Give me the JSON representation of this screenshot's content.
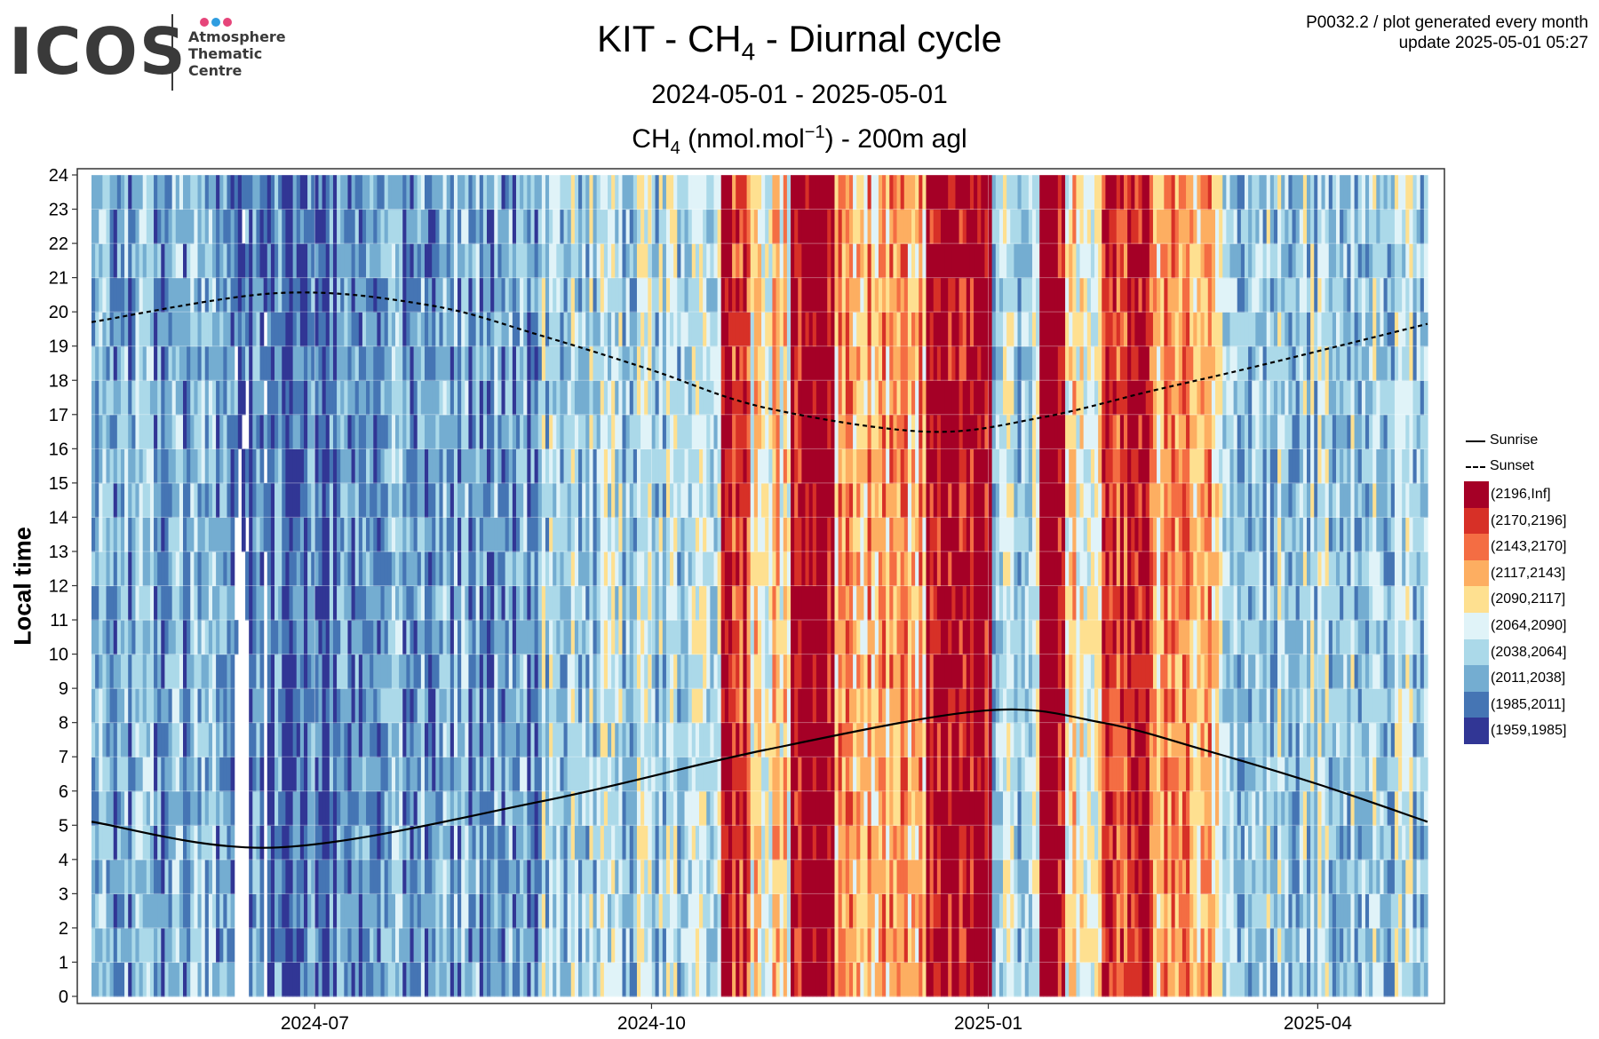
{
  "header": {
    "logo": {
      "text": "ICOS",
      "lines": [
        "Atmosphere",
        "Thematic",
        "Centre"
      ],
      "dot_colors": [
        "#e6457a",
        "#2f9de0",
        "#e6457a"
      ]
    },
    "meta_line1": "P0032.2 / plot generated every month",
    "meta_line2": "update  2025-05-01 05:27",
    "title_prefix": "KIT - CH",
    "title_sub": "4",
    "title_suffix": " - Diurnal cycle",
    "subtitle": "2024-05-01 - 2025-05-01",
    "units_prefix": "CH",
    "units_sub": "4",
    "units_mid": " (nmol.mol",
    "units_sup": "−1",
    "units_suffix": ") - 200m agl"
  },
  "chart_data": {
    "type": "heatmap",
    "x_start": "2024-05-01",
    "x_end": "2025-05-01",
    "x_ticks": [
      "2024-07",
      "2024-10",
      "2025-01",
      "2025-04"
    ],
    "ylabel": "Local time",
    "ylim": [
      0,
      24
    ],
    "y_ticks": [
      0,
      1,
      2,
      3,
      4,
      5,
      6,
      7,
      8,
      9,
      10,
      11,
      12,
      13,
      14,
      15,
      16,
      17,
      18,
      19,
      20,
      21,
      22,
      23,
      24
    ],
    "grid": true,
    "legend_position": "right",
    "line_series": [
      {
        "name": "Sunrise",
        "style": "solid",
        "dates": [
          "2024-05-01",
          "2024-06-21",
          "2024-09-01",
          "2024-11-01",
          "2024-12-31",
          "2025-02-01",
          "2025-03-01",
          "2025-04-01",
          "2025-05-01"
        ],
        "hours": [
          5.1,
          4.35,
          5.7,
          7.2,
          8.35,
          8.0,
          7.2,
          6.2,
          5.1
        ]
      },
      {
        "name": "Sunset",
        "style": "dashed",
        "dates": [
          "2024-05-01",
          "2024-06-21",
          "2024-08-01",
          "2024-09-01",
          "2024-10-01",
          "2024-11-01",
          "2024-12-15",
          "2025-01-15",
          "2025-02-15",
          "2025-03-15",
          "2025-05-01"
        ],
        "hours": [
          19.7,
          20.55,
          20.2,
          19.3,
          18.3,
          17.2,
          16.5,
          16.9,
          17.7,
          18.4,
          19.65
        ]
      }
    ],
    "color_classes": [
      {
        "label": "(2196,Inf]",
        "color": "#a50026"
      },
      {
        "label": "(2170,2196]",
        "color": "#d73027"
      },
      {
        "label": "(2143,2170]",
        "color": "#f46d43"
      },
      {
        "label": "(2117,2143]",
        "color": "#fdae61"
      },
      {
        "label": "(2090,2117]",
        "color": "#fee090"
      },
      {
        "label": "(2064,2090]",
        "color": "#e0f3f8"
      },
      {
        "label": "(2038,2064]",
        "color": "#abd9e9"
      },
      {
        "label": "(2011,2038]",
        "color": "#74add1"
      },
      {
        "label": "(1985,2011]",
        "color": "#4575b4"
      },
      {
        "label": "(1959,1985]",
        "color": "#313695"
      }
    ],
    "daily_class_profile": {
      "note": "approximate modal class index per day (0 = (2196,Inf] ... 9 = (1959,1985]); cells vary around these by hour",
      "segments": [
        {
          "from": "2024-05-01",
          "to": "2024-06-10",
          "class": 7
        },
        {
          "from": "2024-06-10",
          "to": "2024-07-10",
          "class": 8
        },
        {
          "from": "2024-07-10",
          "to": "2024-09-01",
          "class": 7
        },
        {
          "from": "2024-09-01",
          "to": "2024-10-20",
          "class": 6
        },
        {
          "from": "2024-10-20",
          "to": "2024-10-28",
          "class": 1
        },
        {
          "from": "2024-10-28",
          "to": "2024-11-08",
          "class": 4
        },
        {
          "from": "2024-11-08",
          "to": "2024-11-20",
          "class": 0
        },
        {
          "from": "2024-11-20",
          "to": "2024-12-15",
          "class": 3
        },
        {
          "from": "2024-12-15",
          "to": "2025-01-02",
          "class": 0
        },
        {
          "from": "2025-01-02",
          "to": "2025-01-15",
          "class": 6
        },
        {
          "from": "2025-01-15",
          "to": "2025-01-22",
          "class": 0
        },
        {
          "from": "2025-01-22",
          "to": "2025-02-01",
          "class": 4
        },
        {
          "from": "2025-02-01",
          "to": "2025-02-14",
          "class": 1
        },
        {
          "from": "2025-02-14",
          "to": "2025-03-05",
          "class": 3
        },
        {
          "from": "2025-03-05",
          "to": "2025-05-01",
          "class": 6
        }
      ]
    }
  }
}
